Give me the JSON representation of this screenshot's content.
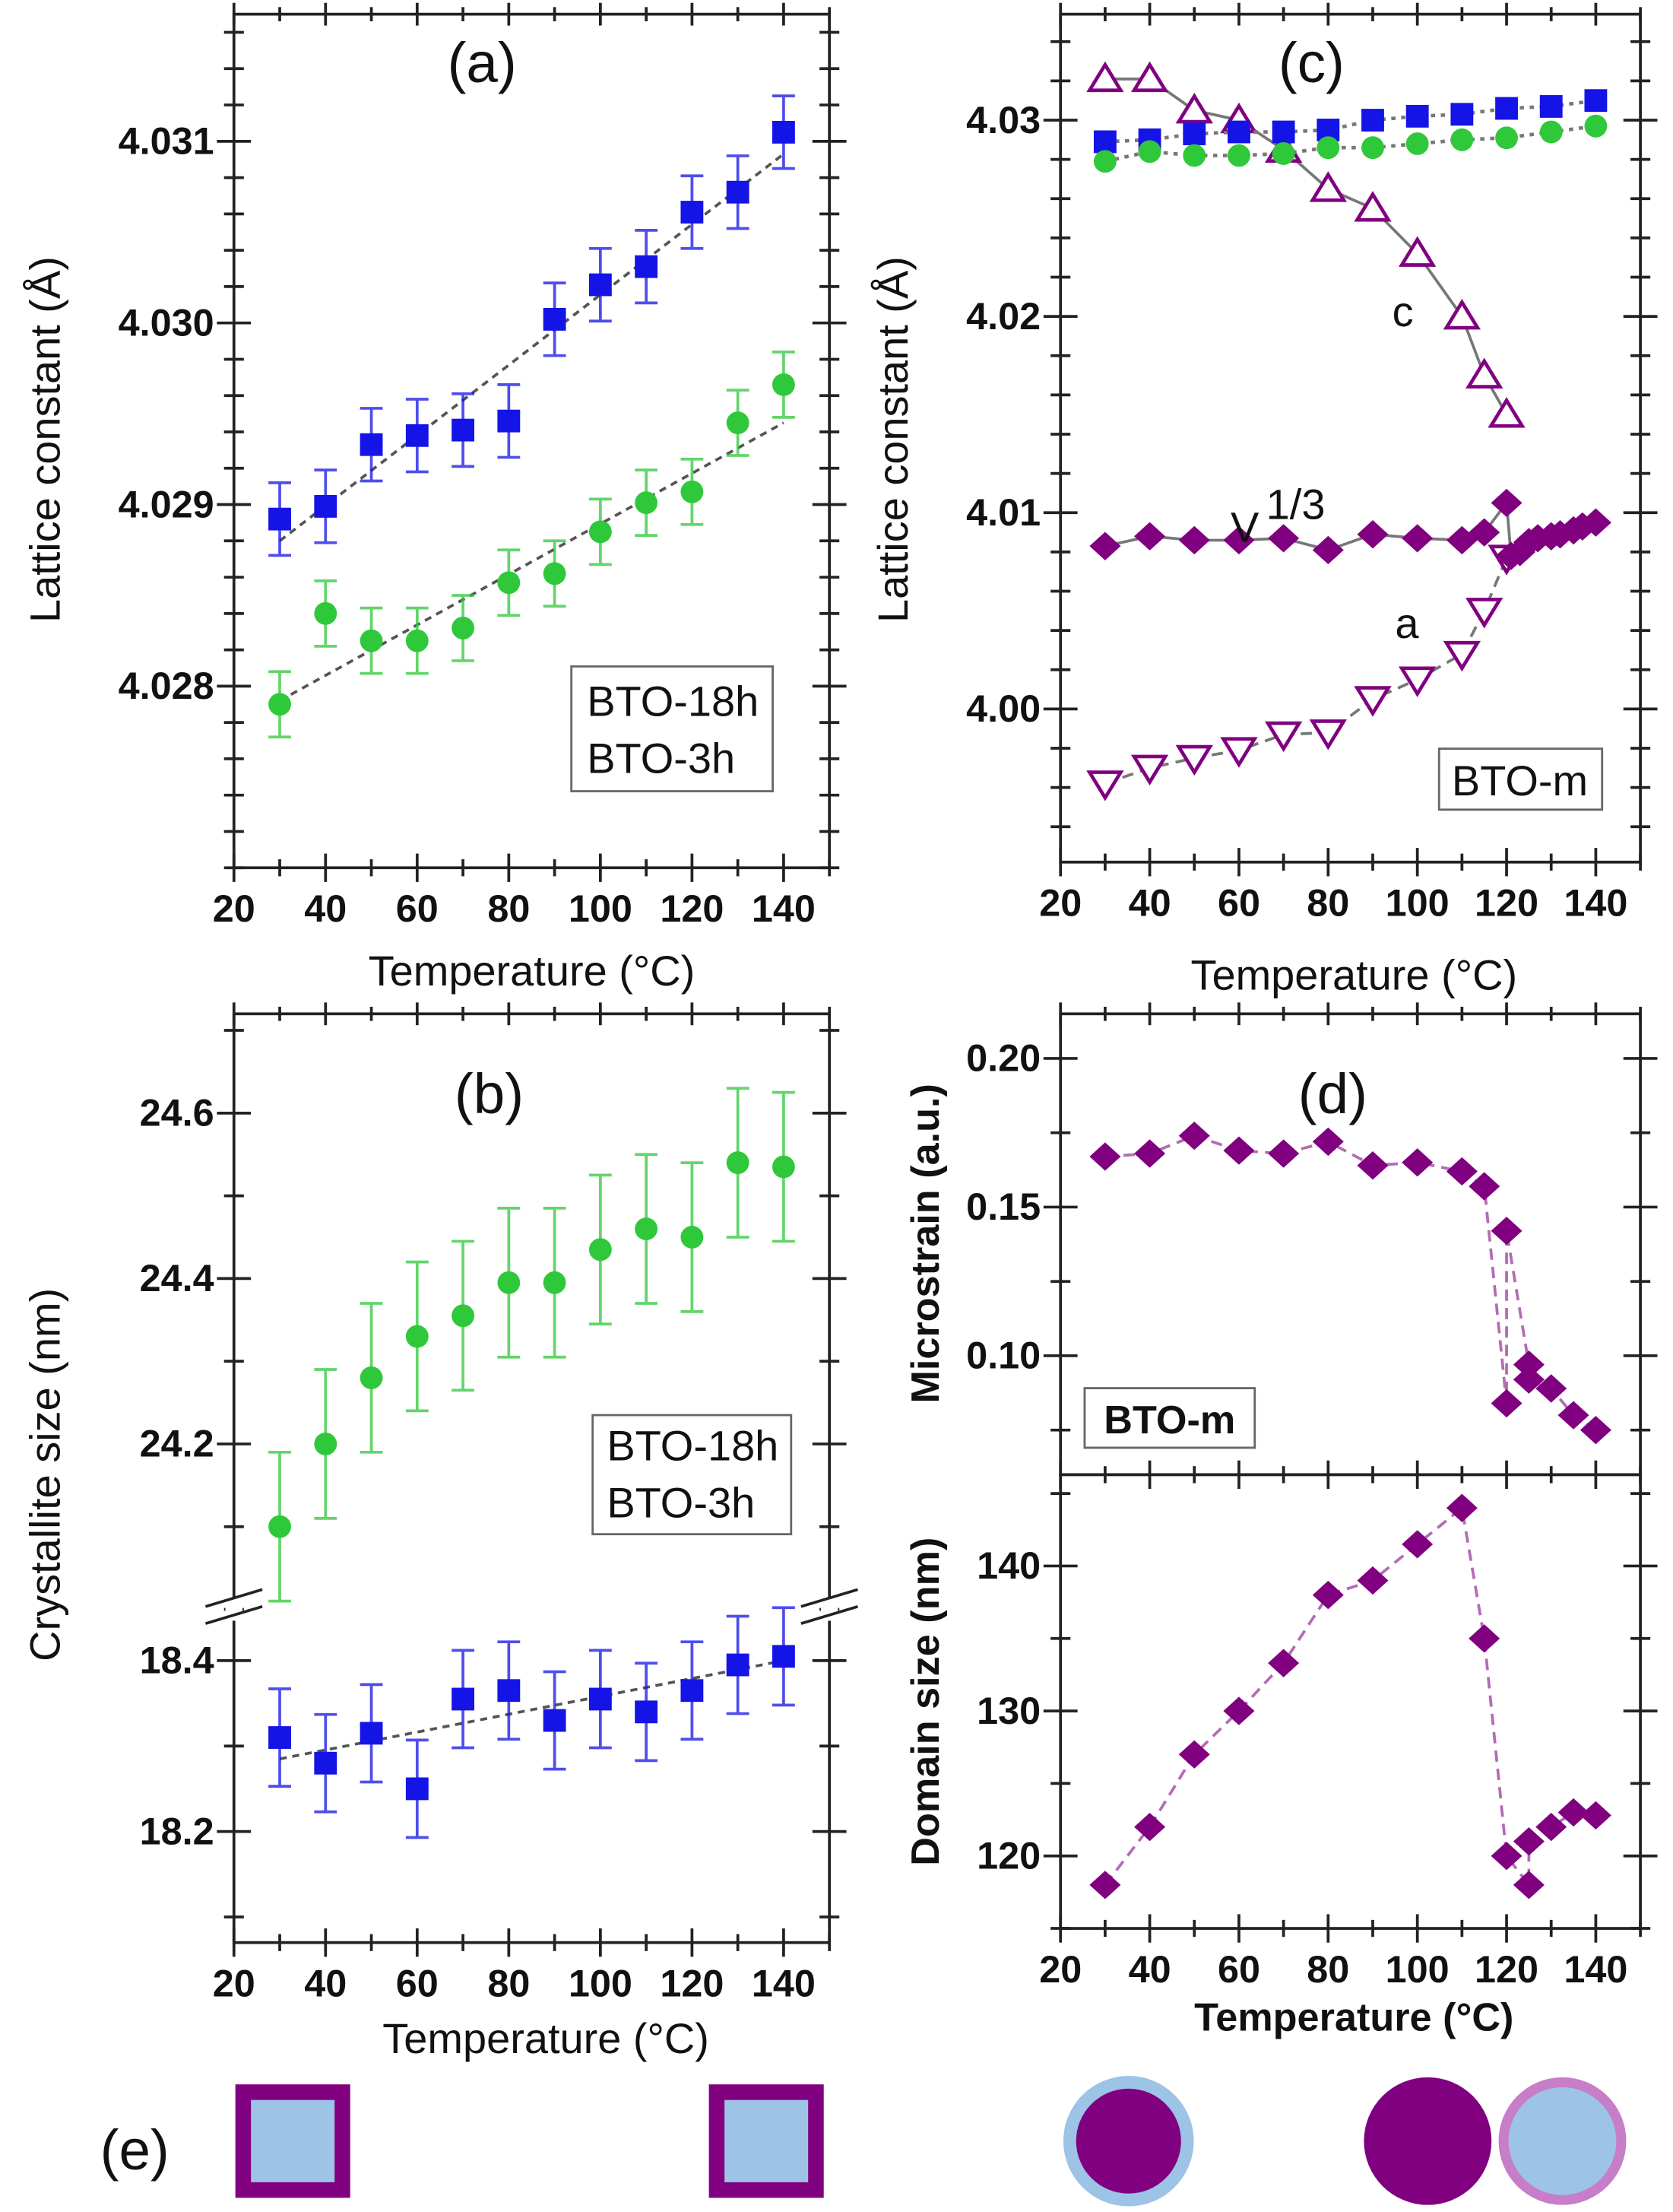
{
  "chart_data": [
    {
      "panel": "a",
      "type": "scatter",
      "title": "(a)",
      "xlabel": "Temperature (°C)",
      "ylabel": "Lattice constant (Å)",
      "xlim": [
        20,
        150
      ],
      "ylim": [
        4.027,
        4.0317
      ],
      "xticks": [
        20,
        40,
        60,
        80,
        100,
        120,
        140
      ],
      "yticks": [
        4.028,
        4.029,
        4.03,
        4.031
      ],
      "ytick_labels": [
        "4.028",
        "4.029",
        "4.030",
        "4.031"
      ],
      "legend": {
        "position": "bottom-right",
        "entries": [
          "BTO-18h",
          "BTO-3h"
        ]
      },
      "series": [
        {
          "name": "BTO-18h",
          "color": "#2fc83a",
          "marker": "circle",
          "x": [
            30,
            40,
            50,
            60,
            70,
            80,
            90,
            100,
            110,
            120,
            130,
            140
          ],
          "y": [
            4.0279,
            4.0284,
            4.02825,
            4.02825,
            4.02832,
            4.02857,
            4.02862,
            4.02885,
            4.02901,
            4.02907,
            4.02945,
            4.02966
          ],
          "yerr": 0.00018,
          "fit": {
            "x": [
              30,
              140
            ],
            "y": [
              4.02792,
              4.02945
            ]
          }
        },
        {
          "name": "BTO-3h",
          "color": "#1414e6",
          "marker": "square",
          "x": [
            30,
            40,
            50,
            60,
            70,
            80,
            90,
            100,
            110,
            120,
            130,
            140
          ],
          "y": [
            4.02892,
            4.02899,
            4.02933,
            4.02938,
            4.02941,
            4.02946,
            4.03002,
            4.03021,
            4.03031,
            4.03061,
            4.03072,
            4.03105
          ],
          "yerr": 0.0002,
          "fit": {
            "x": [
              30,
              140
            ],
            "y": [
              4.0288,
              4.03093
            ]
          }
        }
      ]
    },
    {
      "panel": "b",
      "type": "scatter",
      "title": "(b)",
      "xlabel": "Temperature (°C)",
      "ylabel": "Crystallite size (nm)",
      "xlim": [
        20,
        150
      ],
      "xticks": [
        20,
        40,
        60,
        80,
        100,
        120,
        140
      ],
      "broken_y_axis": [
        {
          "ylim": [
            24.0,
            24.72
          ],
          "yticks": [
            24.2,
            24.4,
            24.6
          ],
          "ytick_labels": [
            "24.2",
            "24.4",
            "24.6"
          ]
        },
        {
          "ylim": [
            18.07,
            18.46
          ],
          "yticks": [
            18.2,
            18.4
          ],
          "ytick_labels": [
            "18.2",
            "18.4"
          ]
        }
      ],
      "legend": {
        "position": "right",
        "entries": [
          "BTO-18h",
          "BTO-3h"
        ]
      },
      "series": [
        {
          "name": "BTO-18h",
          "color": "#2fc83a",
          "marker": "circle",
          "segment": 0,
          "x": [
            30,
            40,
            50,
            60,
            70,
            80,
            90,
            100,
            110,
            120,
            130,
            140
          ],
          "y": [
            24.1,
            24.2,
            24.28,
            24.33,
            24.355,
            24.395,
            24.395,
            24.435,
            24.46,
            24.45,
            24.54,
            24.535
          ],
          "yerr": 0.09
        },
        {
          "name": "BTO-3h",
          "color": "#1414e6",
          "marker": "square",
          "segment": 1,
          "x": [
            30,
            40,
            50,
            60,
            70,
            80,
            90,
            100,
            110,
            120,
            130,
            140
          ],
          "y": [
            18.31,
            18.28,
            18.315,
            18.25,
            18.355,
            18.365,
            18.33,
            18.355,
            18.34,
            18.365,
            18.395,
            18.405
          ],
          "yerr": 0.057,
          "fit": {
            "x": [
              30,
              140
            ],
            "y": [
              18.285,
              18.4
            ]
          }
        }
      ]
    },
    {
      "panel": "c",
      "type": "scatter",
      "title": "(c)",
      "xlabel": "Temperature (°C)",
      "ylabel": "Lattice  constant (Å)",
      "xlim": [
        20,
        150
      ],
      "ylim": [
        3.9922,
        4.0354
      ],
      "xticks": [
        20,
        40,
        60,
        80,
        100,
        120,
        140
      ],
      "yticks": [
        4.0,
        4.01,
        4.02,
        4.03
      ],
      "ytick_labels": [
        "4.00",
        "4.01",
        "4.02",
        "4.03"
      ],
      "legend": {
        "position": "bottom-right",
        "entries": [
          "BTO-m"
        ],
        "color": "#8b1010"
      },
      "annotations": [
        {
          "text": "c"
        },
        {
          "text": "V",
          "sup": "1/3"
        },
        {
          "text": "a"
        }
      ],
      "series": [
        {
          "name": "c",
          "color": "#800080",
          "marker": "triangle-up-open",
          "line": "solid",
          "x": [
            30,
            40,
            50,
            60,
            70,
            80,
            90,
            100,
            110,
            115,
            120
          ],
          "y": [
            4.0321,
            4.0321,
            4.0305,
            4.03,
            4.0285,
            4.0265,
            4.0255,
            4.0232,
            4.02,
            4.017,
            4.015
          ]
        },
        {
          "name": "a",
          "color": "#800080",
          "marker": "triangle-down-open",
          "line": "dashed",
          "x": [
            30,
            40,
            50,
            60,
            70,
            80,
            90,
            100,
            110,
            115,
            120
          ],
          "y": [
            3.9962,
            3.997,
            3.9975,
            3.9979,
            3.9987,
            3.9988,
            4.0005,
            4.0015,
            4.0028,
            4.005,
            4.0077
          ]
        },
        {
          "name": "V^1/3",
          "color": "#800080",
          "marker": "diamond",
          "line": "solid",
          "x": [
            30,
            40,
            50,
            60,
            70,
            80,
            90,
            100,
            110,
            115,
            120,
            121,
            123,
            125,
            127,
            130,
            132,
            135,
            137,
            140
          ],
          "y": [
            4.0083,
            4.0088,
            4.0086,
            4.0086,
            4.0087,
            4.0081,
            4.0089,
            4.0087,
            4.0086,
            4.009,
            4.0105,
            4.0078,
            4.008,
            4.0085,
            4.0087,
            4.0088,
            4.0089,
            4.0091,
            4.0093,
            4.0095
          ]
        },
        {
          "name": "BTO-3h",
          "color": "#1414e6",
          "marker": "square",
          "line": "dotted",
          "x": [
            30,
            40,
            50,
            60,
            70,
            80,
            90,
            100,
            110,
            120,
            130,
            140
          ],
          "y": [
            4.0289,
            4.029,
            4.0293,
            4.0294,
            4.0294,
            4.0295,
            4.03,
            4.0302,
            4.0303,
            4.0306,
            4.0307,
            4.031
          ]
        },
        {
          "name": "BTO-18h",
          "color": "#2fc83a",
          "marker": "circle",
          "line": "dotted",
          "x": [
            30,
            40,
            50,
            60,
            70,
            80,
            90,
            100,
            110,
            120,
            130,
            140
          ],
          "y": [
            4.0279,
            4.0284,
            4.0282,
            4.0282,
            4.0283,
            4.0286,
            4.0286,
            4.0288,
            4.029,
            4.0291,
            4.0294,
            4.0297
          ]
        }
      ]
    },
    {
      "panel": "d-top",
      "type": "line",
      "title": "(d)",
      "ylabel": "Microstrain (a.u.)",
      "xlim": [
        20,
        150
      ],
      "ylim": [
        0.06,
        0.215
      ],
      "xticks": [
        20,
        40,
        60,
        80,
        100,
        120,
        140
      ],
      "yticks": [
        0.1,
        0.15,
        0.2
      ],
      "ytick_labels": [
        "0.10",
        "0.15",
        "0.20"
      ],
      "legend": {
        "position": "bottom-left",
        "entries": [
          "BTO-m"
        ],
        "color": "#800080"
      },
      "series": [
        {
          "name": "BTO-m",
          "color": "#800080",
          "marker": "diamond",
          "line": "dashed",
          "x": [
            30,
            40,
            50,
            60,
            70,
            80,
            90,
            100,
            110,
            115,
            120,
            120,
            125,
            125,
            130,
            135,
            140
          ],
          "y": [
            0.167,
            0.168,
            0.174,
            0.169,
            0.168,
            0.172,
            0.164,
            0.165,
            0.162,
            0.157,
            0.084,
            0.142,
            0.097,
            0.092,
            0.089,
            0.08,
            0.075
          ]
        }
      ]
    },
    {
      "panel": "d-bottom",
      "type": "line",
      "xlabel": "Temperature (°C)",
      "ylabel": "Domain size (nm)",
      "xlim": [
        20,
        150
      ],
      "ylim": [
        115,
        146.3
      ],
      "xticks": [
        20,
        40,
        60,
        80,
        100,
        120,
        140
      ],
      "yticks": [
        120,
        130,
        140
      ],
      "ytick_labels": [
        "120",
        "130",
        "140"
      ],
      "series": [
        {
          "name": "BTO-m",
          "color": "#800080",
          "marker": "diamond",
          "line": "dashed",
          "x": [
            30,
            40,
            50,
            60,
            70,
            80,
            90,
            100,
            110,
            115,
            120,
            125,
            125,
            130,
            135,
            140
          ],
          "y": [
            118,
            122,
            127,
            130,
            133.3,
            138,
            139,
            141.5,
            144,
            135,
            120,
            118,
            121,
            122,
            123,
            122.8
          ]
        }
      ]
    }
  ],
  "panel_e": {
    "label": "(e)",
    "colors": {
      "purple": "#800080",
      "light_blue": "#9dc3e6",
      "pink": "#c77dc7"
    },
    "shapes": [
      "square-purple-frame-blue-core",
      "square-purple-frame-blue-core",
      "circle-purple-core-blue-shell",
      "circle-purple-solid",
      "circle-blue-core-pink-shell"
    ]
  }
}
